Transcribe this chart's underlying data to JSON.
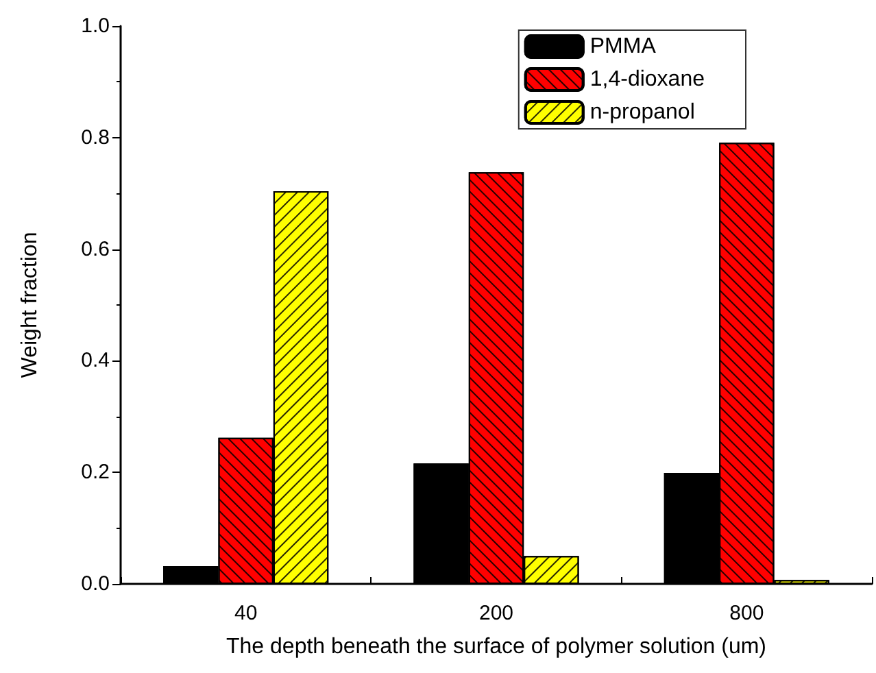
{
  "chart_data": {
    "type": "bar",
    "xlabel": "The depth beneath the surface of polymer solution (um)",
    "ylabel": "Weight fraction",
    "categories": [
      "40",
      "200",
      "800"
    ],
    "series": [
      {
        "name": "PMMA",
        "color": "#000000",
        "values": [
          0.032,
          0.216,
          0.199
        ]
      },
      {
        "name": "1,4-dioxane",
        "color": "#ff0000",
        "values": [
          0.262,
          0.738,
          0.791
        ]
      },
      {
        "name": "n-propanol",
        "color": "#ffff00",
        "values": [
          0.704,
          0.05,
          0.007
        ]
      }
    ],
    "ylim": [
      0,
      1.0
    ],
    "yticks": [
      {
        "value": 0,
        "label": "0.0"
      },
      {
        "value": 0.2,
        "label": "0.2"
      },
      {
        "value": 0.4,
        "label": "0.4"
      },
      {
        "value": 0.6,
        "label": "0.6"
      },
      {
        "value": 0.8,
        "label": "0.8"
      },
      {
        "value": 1.0,
        "label": "1.0"
      }
    ],
    "grid": false,
    "legend": "top right"
  }
}
